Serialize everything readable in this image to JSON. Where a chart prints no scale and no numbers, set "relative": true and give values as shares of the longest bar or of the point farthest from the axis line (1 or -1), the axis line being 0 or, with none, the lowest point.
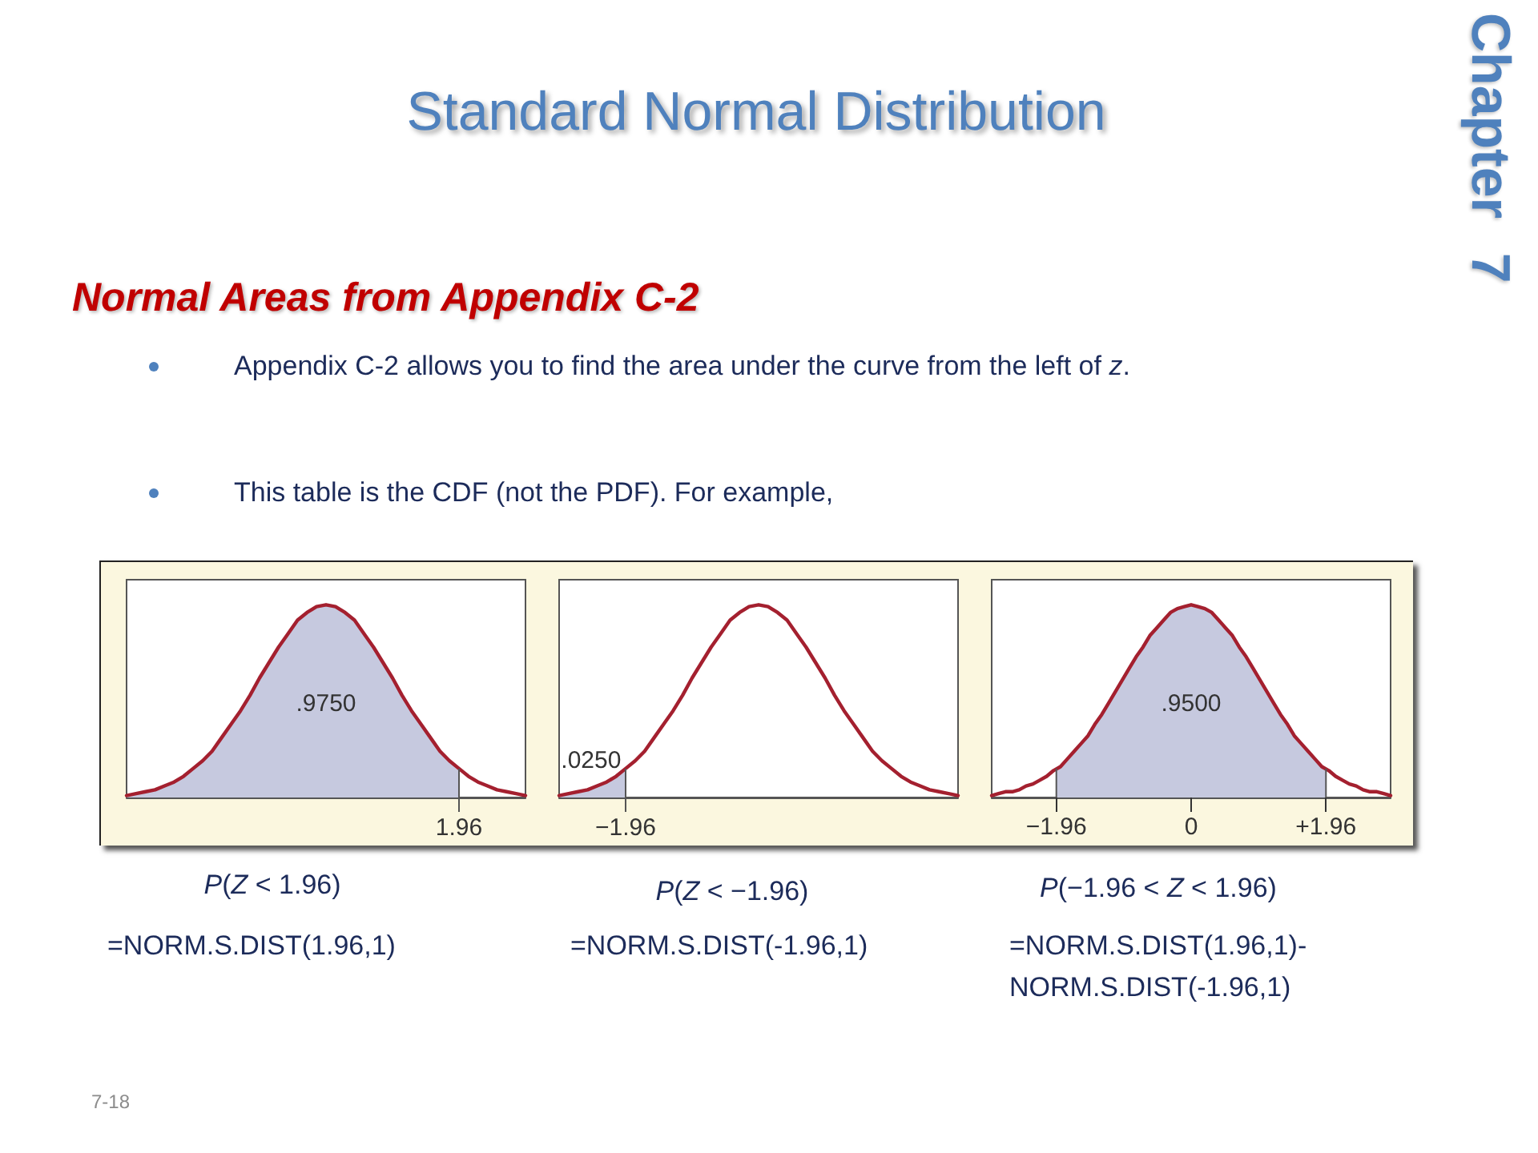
{
  "chart_data": [
    {
      "type": "other",
      "title": "Standard Normal Distribution",
      "subtitle": "Normal Areas from Appendix C-2",
      "annotations": [
        "Appendix C-2 allows you to find the area under the curve from the left of z.",
        "This table is the CDF (not the PDF). For example,",
        "Chapter 7",
        "7-18"
      ]
    },
    {
      "type": "line",
      "relative": true,
      "marker": "none",
      "categories": [
        null,
        null,
        null,
        null,
        null,
        null,
        null,
        null,
        null,
        null,
        null,
        null,
        null,
        null,
        null,
        null,
        null,
        null,
        null,
        null,
        null,
        null,
        null,
        null,
        null,
        null,
        null,
        null,
        null,
        null,
        null,
        null,
        null,
        null,
        null,
        null,
        null,
        null,
        null,
        null,
        null,
        null,
        null
      ],
      "series": [
        {
          "type": "area",
          "color": "#c6c9df",
          "values": [
            0.01,
            0.02,
            0.03,
            0.04,
            0.06,
            0.08,
            0.11,
            0.15,
            0.19,
            0.24,
            0.31,
            0.38,
            0.45,
            0.53,
            0.62,
            0.7,
            0.78,
            0.85,
            0.92,
            0.96,
            0.99,
            1,
            0.99,
            0.96,
            0.92,
            0.85,
            0.78,
            0.7,
            0.62,
            0.53,
            0.45,
            0.38,
            0.31,
            0.24,
            0.19,
            0.15,
            null,
            null,
            null,
            null,
            null,
            null,
            null
          ]
        },
        {
          "type": "line",
          "color": "#a4202f",
          "values": [
            0.01,
            0.02,
            0.03,
            0.04,
            0.06,
            0.08,
            0.11,
            0.15,
            0.19,
            0.24,
            0.31,
            0.38,
            0.45,
            0.53,
            0.62,
            0.7,
            0.78,
            0.85,
            0.92,
            0.96,
            0.99,
            1,
            0.99,
            0.96,
            0.92,
            0.85,
            0.78,
            0.7,
            0.62,
            0.53,
            0.45,
            0.38,
            0.31,
            0.24,
            0.19,
            0.15,
            0.11,
            0.08,
            0.06,
            0.04,
            0.03,
            0.02,
            0.01
          ]
        }
      ],
      "annotations": [
        ".9750",
        "1.96",
        "P(Z < 1.96)",
        "=NORM.S.DIST(1.96,1)"
      ]
    },
    {
      "type": "line",
      "relative": true,
      "marker": "none",
      "categories": [
        null,
        null,
        null,
        null,
        null,
        null,
        null,
        null,
        null,
        null,
        null,
        null,
        null,
        null,
        null,
        null,
        null,
        null,
        null,
        null,
        null,
        null,
        null,
        null,
        null,
        null,
        null,
        null,
        null,
        null,
        null,
        null,
        null,
        null,
        null,
        null,
        null,
        null,
        null,
        null,
        null,
        null,
        null
      ],
      "series": [
        {
          "type": "area",
          "color": "#c6c9df",
          "values": [
            0.01,
            0.02,
            0.03,
            0.04,
            0.06,
            0.08,
            0.11,
            0.15,
            null,
            null,
            null,
            null,
            null,
            null,
            null,
            null,
            null,
            null,
            null,
            null,
            null,
            null,
            null,
            null,
            null,
            null,
            null,
            null,
            null,
            null,
            null,
            null,
            null,
            null,
            null,
            null,
            null,
            null,
            null,
            null,
            null,
            null,
            null
          ]
        },
        {
          "type": "line",
          "color": "#a4202f",
          "values": [
            0.01,
            0.02,
            0.03,
            0.04,
            0.06,
            0.08,
            0.11,
            0.15,
            0.19,
            0.24,
            0.31,
            0.38,
            0.45,
            0.53,
            0.62,
            0.7,
            0.78,
            0.85,
            0.92,
            0.96,
            0.99,
            1,
            0.99,
            0.96,
            0.92,
            0.85,
            0.78,
            0.7,
            0.62,
            0.53,
            0.45,
            0.38,
            0.31,
            0.24,
            0.19,
            0.15,
            0.11,
            0.08,
            0.06,
            0.04,
            0.03,
            0.02,
            0.01
          ]
        }
      ],
      "annotations": [
        ".0250",
        "−1.96",
        "P(Z < −1.96)",
        "=NORM.S.DIST(-1.96,1)"
      ]
    },
    {
      "type": "line",
      "relative": true,
      "xlim": [
        -2.9,
        2.9
      ],
      "xticks": [
        {
          "value": -1.96,
          "label": "−1.96"
        },
        0,
        {
          "value": 1.96,
          "label": "+1.96"
        }
      ],
      "marker": "none",
      "series": [
        {
          "type": "area",
          "color": "#c6c9df",
          "x": [
            -1.96,
            -1.9,
            -1.8,
            -1.7,
            -1.6,
            -1.5,
            -1.4,
            -1.3,
            -1.2,
            -1.1,
            -1,
            -0.9,
            -0.8,
            -0.7,
            -0.6,
            -0.5,
            -0.4,
            -0.3,
            -0.2,
            -0.1,
            0,
            0.1,
            0.2,
            0.3,
            0.4,
            0.5,
            0.6,
            0.7,
            0.8,
            0.9,
            1,
            1.1,
            1.2,
            1.3,
            1.4,
            1.5,
            1.6,
            1.7,
            1.8,
            1.9,
            1.96
          ],
          "values": [
            0.15,
            0.16,
            0.2,
            0.24,
            0.28,
            0.32,
            0.38,
            0.43,
            0.49,
            0.55,
            0.61,
            0.67,
            0.73,
            0.78,
            0.84,
            0.88,
            0.92,
            0.96,
            0.98,
            0.99,
            1,
            0.99,
            0.98,
            0.96,
            0.92,
            0.88,
            0.84,
            0.78,
            0.73,
            0.67,
            0.61,
            0.55,
            0.49,
            0.43,
            0.38,
            0.32,
            0.28,
            0.24,
            0.2,
            0.16,
            0.15
          ]
        },
        {
          "type": "line",
          "color": "#a4202f",
          "x": [
            -2.9,
            -2.8,
            -2.7,
            -2.6,
            -2.5,
            -2.4,
            -2.3,
            -2.2,
            -2.1,
            -2,
            -1.9,
            -1.8,
            -1.7,
            -1.6,
            -1.5,
            -1.4,
            -1.3,
            -1.2,
            -1.1,
            -1,
            -0.9,
            -0.8,
            -0.7,
            -0.6,
            -0.5,
            -0.4,
            -0.3,
            -0.2,
            -0.1,
            0,
            0.1,
            0.2,
            0.3,
            0.4,
            0.5,
            0.6,
            0.7,
            0.8,
            0.9,
            1,
            1.1,
            1.2,
            1.3,
            1.4,
            1.5,
            1.6,
            1.7,
            1.8,
            1.9,
            2,
            2.1,
            2.2,
            2.3,
            2.4,
            2.5,
            2.6,
            2.7,
            2.8,
            2.9
          ],
          "values": [
            0.01,
            0.02,
            0.03,
            0.03,
            0.04,
            0.06,
            0.07,
            0.09,
            0.11,
            0.14,
            0.16,
            0.2,
            0.24,
            0.28,
            0.32,
            0.38,
            0.43,
            0.49,
            0.55,
            0.61,
            0.67,
            0.73,
            0.78,
            0.84,
            0.88,
            0.92,
            0.96,
            0.98,
            0.99,
            1,
            0.99,
            0.98,
            0.96,
            0.92,
            0.88,
            0.84,
            0.78,
            0.73,
            0.67,
            0.61,
            0.55,
            0.49,
            0.43,
            0.38,
            0.32,
            0.28,
            0.24,
            0.2,
            0.16,
            0.14,
            0.11,
            0.09,
            0.07,
            0.06,
            0.04,
            0.03,
            0.03,
            0.02,
            0.01
          ]
        }
      ],
      "annotations": [
        ".9500",
        "P(−1.96 < Z < 1.96)",
        "=NORM.S.DIST(1.96,1)-NORM.S.DIST(-1.96,1)"
      ]
    }
  ]
}
